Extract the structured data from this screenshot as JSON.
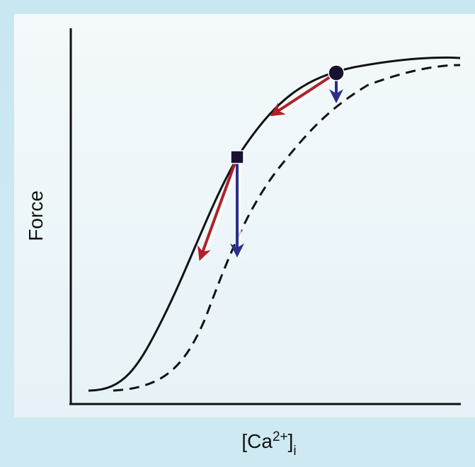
{
  "axes": {
    "y_label": "Force",
    "x_label": {
      "open": "[Ca",
      "superscript": "2+",
      "close": "]",
      "subscript": "i"
    }
  }
}
